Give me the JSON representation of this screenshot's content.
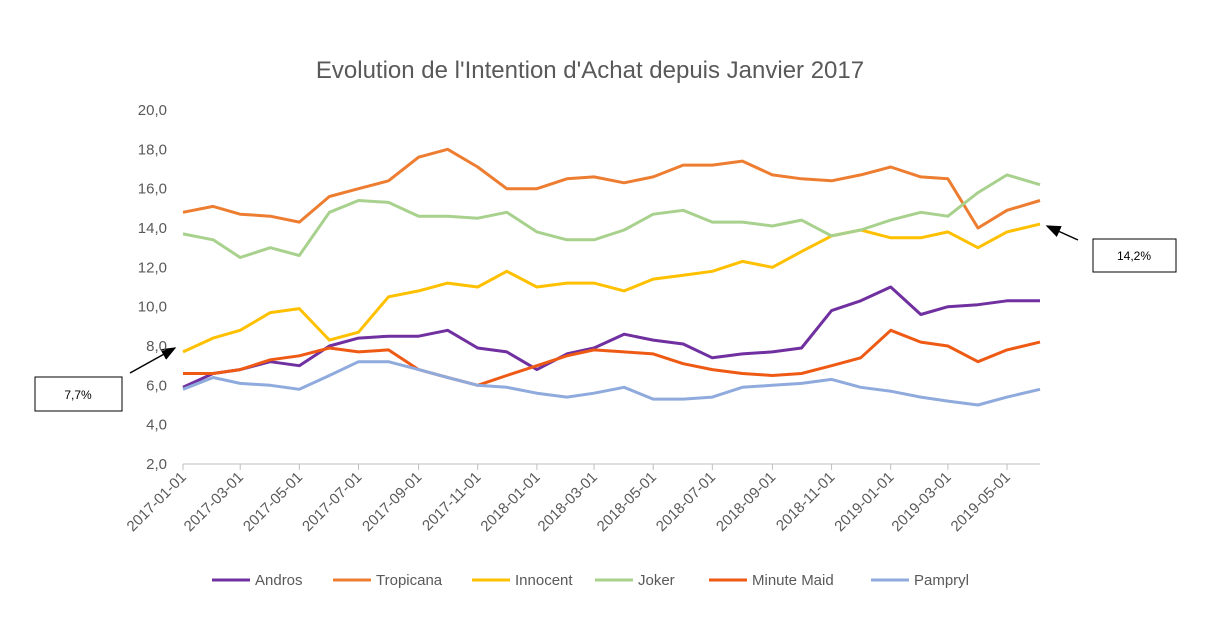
{
  "chart_data": {
    "type": "line",
    "title": "Evolution de l'Intention d'Achat depuis Janvier 2017",
    "x": [
      "2017-01-01",
      "2017-02-01",
      "2017-03-01",
      "2017-04-01",
      "2017-05-01",
      "2017-06-01",
      "2017-07-01",
      "2017-08-01",
      "2017-09-01",
      "2017-10-01",
      "2017-11-01",
      "2017-12-01",
      "2018-01-01",
      "2018-02-01",
      "2018-03-01",
      "2018-04-01",
      "2018-05-01",
      "2018-06-01",
      "2018-07-01",
      "2018-08-01",
      "2018-09-01",
      "2018-10-01",
      "2018-11-01",
      "2018-12-01",
      "2019-01-01",
      "2019-02-01",
      "2019-03-01",
      "2019-04-01",
      "2019-05-01",
      "2019-06-04"
    ],
    "series": [
      {
        "name": "Andros",
        "color": "#7030a0",
        "values": [
          5.9,
          6.6,
          6.8,
          7.2,
          7.0,
          8.0,
          8.4,
          8.5,
          8.5,
          8.8,
          7.9,
          7.7,
          6.8,
          7.6,
          7.9,
          8.6,
          8.3,
          8.1,
          7.4,
          7.6,
          7.7,
          7.9,
          9.8,
          10.3,
          11.0,
          9.6,
          10.0,
          10.1,
          10.3,
          10.3
        ]
      },
      {
        "name": "Tropicana",
        "color": "#ed7d31",
        "values": [
          14.8,
          15.1,
          14.7,
          14.6,
          14.3,
          15.6,
          16.0,
          16.4,
          17.6,
          18.0,
          17.1,
          16.0,
          16.0,
          16.5,
          16.6,
          16.3,
          16.6,
          17.2,
          17.2,
          17.4,
          16.7,
          16.5,
          16.4,
          16.7,
          17.1,
          16.6,
          16.5,
          14.0,
          14.9,
          15.4
        ]
      },
      {
        "name": "Innocent",
        "color": "#ffc000",
        "values": [
          7.7,
          8.4,
          8.8,
          9.7,
          9.9,
          8.3,
          8.7,
          10.5,
          10.8,
          11.2,
          11.0,
          11.8,
          11.0,
          11.2,
          11.2,
          10.8,
          11.4,
          11.6,
          11.8,
          12.3,
          12.0,
          12.8,
          13.6,
          13.9,
          13.5,
          13.5,
          13.8,
          13.0,
          13.8,
          14.2
        ]
      },
      {
        "name": "Joker",
        "color": "#a9d18e",
        "values": [
          13.7,
          13.4,
          12.5,
          13.0,
          12.6,
          14.8,
          15.4,
          15.3,
          14.6,
          14.6,
          14.5,
          14.8,
          13.8,
          13.4,
          13.4,
          13.9,
          14.7,
          14.9,
          14.3,
          14.3,
          14.1,
          14.4,
          13.6,
          13.9,
          14.4,
          14.8,
          14.6,
          15.8,
          16.7,
          16.2
        ]
      },
      {
        "name": "Minute Maid",
        "color": "#ee5a14",
        "values": [
          6.6,
          6.6,
          6.8,
          7.3,
          7.5,
          7.9,
          7.7,
          7.8,
          6.8,
          6.4,
          6.0,
          6.5,
          7.0,
          7.5,
          7.8,
          7.7,
          7.6,
          7.1,
          6.8,
          6.6,
          6.5,
          6.6,
          7.0,
          7.4,
          8.8,
          8.2,
          8.0,
          7.2,
          7.8,
          8.2
        ]
      },
      {
        "name": "Pampryl",
        "color": "#8faadc",
        "values": [
          5.8,
          6.4,
          6.1,
          6.0,
          5.8,
          6.5,
          7.2,
          7.2,
          6.8,
          6.4,
          6.0,
          5.9,
          5.6,
          5.4,
          5.6,
          5.9,
          5.3,
          5.3,
          5.4,
          5.9,
          6.0,
          6.1,
          6.3,
          5.9,
          5.7,
          5.4,
          5.2,
          5.0,
          5.4,
          5.8
        ]
      }
    ],
    "xlim": [
      "2017-01-01",
      "2019-06-04"
    ],
    "xticks": [
      "2017-01-01",
      "2017-03-01",
      "2017-05-01",
      "2017-07-01",
      "2017-09-01",
      "2017-11-01",
      "2018-01-01",
      "2018-03-01",
      "2018-05-01",
      "2018-07-01",
      "2018-09-01",
      "2018-11-01",
      "2019-01-01",
      "2019-03-01",
      "2019-05-01"
    ],
    "ylim": [
      2,
      20
    ],
    "yticks": [
      {
        "value": 2,
        "label": "2,0"
      },
      {
        "value": 4,
        "label": "4,0"
      },
      {
        "value": 6,
        "label": "6,0"
      },
      {
        "value": 8,
        "label": "8,0"
      },
      {
        "value": 10,
        "label": "10,0"
      },
      {
        "value": 12,
        "label": "12,0"
      },
      {
        "value": 14,
        "label": "14,0"
      },
      {
        "value": 16,
        "label": "16,0"
      },
      {
        "value": 18,
        "label": "18,0"
      },
      {
        "value": 20,
        "label": "20,0"
      }
    ],
    "grid": false,
    "legend": "bottom",
    "annotations": [
      "7,7%",
      "14,2%"
    ]
  }
}
